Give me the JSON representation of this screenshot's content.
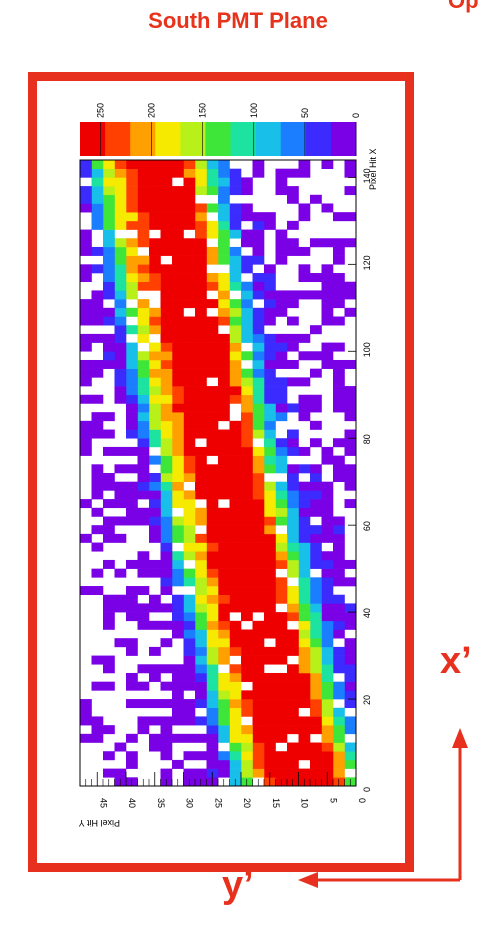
{
  "page": {
    "title": "South PMT Plane",
    "cut_title": "Op",
    "x_prime_label": "x’",
    "y_prime_label": "y’"
  },
  "colors": {
    "accent": "#e8301e"
  },
  "chart_data": {
    "type": "heatmap",
    "title": "",
    "xlabel": "Pixel Hit X",
    "ylabel": "Pixel Hit Y",
    "x_range": [
      0,
      144
    ],
    "y_range": [
      0,
      48
    ],
    "x_ticks": [
      "0",
      "20",
      "40",
      "60",
      "80",
      "100",
      "120",
      "140"
    ],
    "y_ticks": [
      "0",
      "5",
      "10",
      "15",
      "20",
      "25",
      "30",
      "35",
      "40",
      "45"
    ],
    "z_range": [
      0,
      270
    ],
    "z_ticks": [
      "0",
      "50",
      "100",
      "150",
      "200",
      "250"
    ],
    "palette": [
      "#ffffff",
      "#7a00e6",
      "#3b2bff",
      "#1b7dff",
      "#18bfe8",
      "#1de3a0",
      "#3ee63a",
      "#b8f01a",
      "#f5ea00",
      "#ffa000",
      "#ff4000",
      "#ee0000"
    ],
    "bands": [
      {
        "y0": 2,
        "y1": 28,
        "width": 4.5,
        "peak": 120
      },
      {
        "y0": 6,
        "y1": 33,
        "width": 4.2,
        "peak": 180
      },
      {
        "y0": 10,
        "y1": 35,
        "width": 3.6,
        "peak": 220
      },
      {
        "y0": 14,
        "y1": 40,
        "width": 3.2,
        "peak": 150
      },
      {
        "y0": 18,
        "y1": 44,
        "width": 2.8,
        "peak": 110
      }
    ]
  }
}
